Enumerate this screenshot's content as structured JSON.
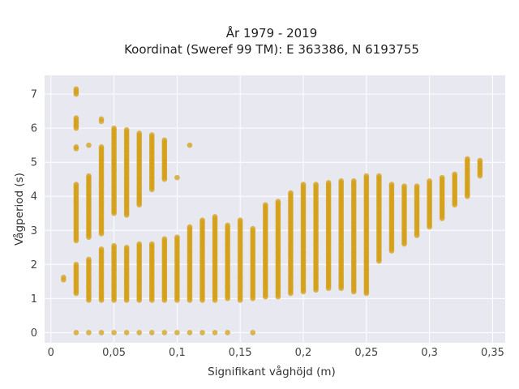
{
  "chart_data": {
    "type": "scatter",
    "title": "År 1979 - 2019",
    "subtitle": "Koordinat (Sweref 99 TM): E 363386, N 6193755",
    "xlabel": "Signifikant våghöjd (m)",
    "ylabel": "Vågperiod (s)",
    "xlim": [
      -0.005,
      0.36
    ],
    "ylim": [
      -0.3,
      7.55
    ],
    "x_ticks": [
      0,
      0.05,
      0.1,
      0.15,
      0.2,
      0.25,
      0.3,
      0.35
    ],
    "x_tick_labels": [
      "0",
      "0,05",
      "0,1",
      "0,15",
      "0,2",
      "0,25",
      "0,3",
      "0,35"
    ],
    "y_ticks": [
      0,
      1,
      2,
      3,
      4,
      5,
      6,
      7
    ],
    "y_tick_labels": [
      "0",
      "1",
      "2",
      "3",
      "4",
      "5",
      "6",
      "7"
    ],
    "grid": true,
    "marker_color": "#d4a017",
    "background_color": "#e8e8f0",
    "columns": [
      {
        "x": 0.01,
        "ranges": [
          [
            1.55,
            1.62
          ]
        ]
      },
      {
        "x": 0.02,
        "ranges": [
          [
            0,
            0
          ],
          [
            1.15,
            2.0
          ],
          [
            2.7,
            4.35
          ],
          [
            5.4,
            5.45
          ],
          [
            6.0,
            6.3
          ],
          [
            7.0,
            7.15
          ]
        ]
      },
      {
        "x": 0.03,
        "ranges": [
          [
            0,
            0
          ],
          [
            0.95,
            2.15
          ],
          [
            2.8,
            4.6
          ],
          [
            5.5,
            5.5
          ]
        ]
      },
      {
        "x": 0.04,
        "ranges": [
          [
            0,
            0
          ],
          [
            0.95,
            2.45
          ],
          [
            2.9,
            5.45
          ],
          [
            6.2,
            6.27
          ]
        ]
      },
      {
        "x": 0.05,
        "ranges": [
          [
            0,
            0
          ],
          [
            0.95,
            2.55
          ],
          [
            3.5,
            6.0
          ]
        ]
      },
      {
        "x": 0.06,
        "ranges": [
          [
            0,
            0
          ],
          [
            0.95,
            2.5
          ],
          [
            3.45,
            5.95
          ]
        ]
      },
      {
        "x": 0.07,
        "ranges": [
          [
            0,
            0
          ],
          [
            0.95,
            2.6
          ],
          [
            3.75,
            5.85
          ]
        ]
      },
      {
        "x": 0.08,
        "ranges": [
          [
            0,
            0
          ],
          [
            0.95,
            2.6
          ],
          [
            4.2,
            5.8
          ]
        ]
      },
      {
        "x": 0.09,
        "ranges": [
          [
            0,
            0
          ],
          [
            0.95,
            2.75
          ],
          [
            4.5,
            5.65
          ]
        ]
      },
      {
        "x": 0.1,
        "ranges": [
          [
            0,
            0
          ],
          [
            0.95,
            2.8
          ],
          [
            4.55,
            4.55
          ]
        ]
      },
      {
        "x": 0.11,
        "ranges": [
          [
            0,
            0
          ],
          [
            0.95,
            3.1
          ],
          [
            5.5,
            5.5
          ]
        ]
      },
      {
        "x": 0.12,
        "ranges": [
          [
            0,
            0
          ],
          [
            0.95,
            3.3
          ]
        ]
      },
      {
        "x": 0.13,
        "ranges": [
          [
            0,
            0
          ],
          [
            0.95,
            3.4
          ]
        ]
      },
      {
        "x": 0.14,
        "ranges": [
          [
            0,
            0
          ],
          [
            1.0,
            3.15
          ]
        ]
      },
      {
        "x": 0.15,
        "ranges": [
          [
            0.95,
            3.3
          ]
        ]
      },
      {
        "x": 0.16,
        "ranges": [
          [
            0,
            0
          ],
          [
            1.0,
            3.05
          ]
        ]
      },
      {
        "x": 0.17,
        "ranges": [
          [
            1.05,
            3.75
          ]
        ]
      },
      {
        "x": 0.18,
        "ranges": [
          [
            1.05,
            3.85
          ]
        ]
      },
      {
        "x": 0.19,
        "ranges": [
          [
            1.15,
            4.1
          ]
        ]
      },
      {
        "x": 0.2,
        "ranges": [
          [
            1.2,
            4.35
          ]
        ]
      },
      {
        "x": 0.21,
        "ranges": [
          [
            1.25,
            4.35
          ]
        ]
      },
      {
        "x": 0.22,
        "ranges": [
          [
            1.3,
            4.4
          ]
        ]
      },
      {
        "x": 0.23,
        "ranges": [
          [
            1.3,
            4.45
          ]
        ]
      },
      {
        "x": 0.24,
        "ranges": [
          [
            1.2,
            4.45
          ]
        ]
      },
      {
        "x": 0.25,
        "ranges": [
          [
            1.15,
            4.6
          ]
        ]
      },
      {
        "x": 0.26,
        "ranges": [
          [
            2.1,
            4.6
          ]
        ]
      },
      {
        "x": 0.27,
        "ranges": [
          [
            2.4,
            4.35
          ]
        ]
      },
      {
        "x": 0.28,
        "ranges": [
          [
            2.6,
            4.3
          ]
        ]
      },
      {
        "x": 0.29,
        "ranges": [
          [
            2.85,
            4.3
          ]
        ]
      },
      {
        "x": 0.3,
        "ranges": [
          [
            3.1,
            4.45
          ]
        ]
      },
      {
        "x": 0.31,
        "ranges": [
          [
            3.35,
            4.55
          ]
        ]
      },
      {
        "x": 0.32,
        "ranges": [
          [
            3.75,
            4.65
          ]
        ]
      },
      {
        "x": 0.33,
        "ranges": [
          [
            4.0,
            5.1
          ]
        ]
      },
      {
        "x": 0.34,
        "ranges": [
          [
            4.6,
            5.05
          ]
        ]
      }
    ]
  }
}
